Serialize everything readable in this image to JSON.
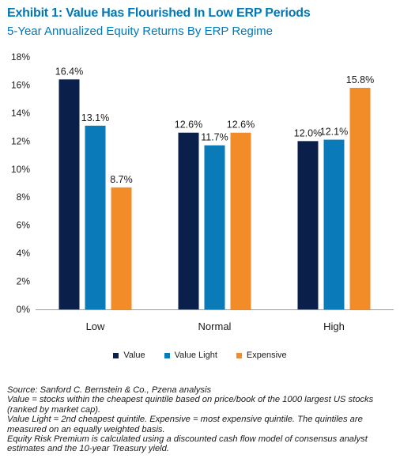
{
  "header": {
    "title": "Exhibit 1: Value Has Flourished In Low ERP Periods",
    "subtitle": "5-Year Annualized Equity Returns By ERP Regime"
  },
  "chart_data": {
    "type": "bar",
    "title": "Exhibit 1: Value Has Flourished In Low ERP Periods",
    "subtitle": "5-Year Annualized Equity Returns By ERP Regime",
    "categories": [
      "Low",
      "Normal",
      "High"
    ],
    "series": [
      {
        "name": "Value",
        "color": "#0b1f4b",
        "values": [
          16.4,
          12.6,
          12.0
        ],
        "labels": [
          "16.4%",
          "12.6%",
          "12.0%"
        ]
      },
      {
        "name": "Value Light",
        "color": "#0a7bb8",
        "values": [
          13.1,
          11.7,
          12.1
        ],
        "labels": [
          "13.1%",
          "11.7%",
          "12.1%"
        ]
      },
      {
        "name": "Expensive",
        "color": "#f28c28",
        "values": [
          8.7,
          12.6,
          15.8
        ],
        "labels": [
          "8.7%",
          "12.6%",
          "15.8%"
        ]
      }
    ],
    "ylim": [
      0,
      18
    ],
    "yticks": [
      "0%",
      "2%",
      "4%",
      "6%",
      "8%",
      "10%",
      "12%",
      "14%",
      "16%",
      "18%"
    ],
    "xlabel": "",
    "ylabel": "",
    "grid": false,
    "legend": "bottom"
  },
  "notes": {
    "source": "Source: Sanford C. Bernstein & Co., Pzena analysis",
    "value_def": "Value = stocks within the cheapest quintile based on price/book of the 1000 largest US stocks (ranked by market cap).",
    "light_def": "Value Light = 2nd cheapest quintile. Expensive = most expensive quintile. The quintiles are measured on an equally weighted basis.",
    "erp_def": "Equity Risk Premium is calculated using a discounted cash flow model of consensus analyst estimates and the 10-year Treasury yield."
  }
}
